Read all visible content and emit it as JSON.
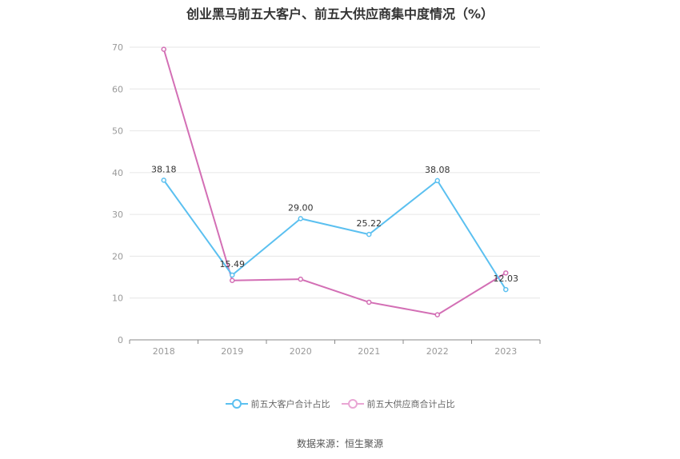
{
  "title": "创业黑马前五大客户、前五大供应商集中度情况（%）",
  "source": "数据来源：恒生聚源",
  "chart_data": {
    "type": "line",
    "x": [
      "2018",
      "2019",
      "2020",
      "2021",
      "2022",
      "2023"
    ],
    "ylim": [
      0,
      70
    ],
    "yticks": [
      0,
      10,
      20,
      30,
      40,
      50,
      60,
      70
    ],
    "grid": true,
    "legend_position": "bottom",
    "series": [
      {
        "name": "前五大客户合计占比",
        "color": "#5bc0f0",
        "values": [
          38.18,
          15.49,
          29.0,
          25.22,
          38.08,
          12.03
        ],
        "labels": [
          "38.18",
          "15.49",
          "29.00",
          "25.22",
          "38.08",
          "12.03"
        ]
      },
      {
        "name": "前五大供应商合计占比",
        "color": "#d36fb5",
        "values": [
          69.5,
          14.2,
          14.5,
          9.0,
          6.0,
          16.0
        ]
      }
    ]
  }
}
